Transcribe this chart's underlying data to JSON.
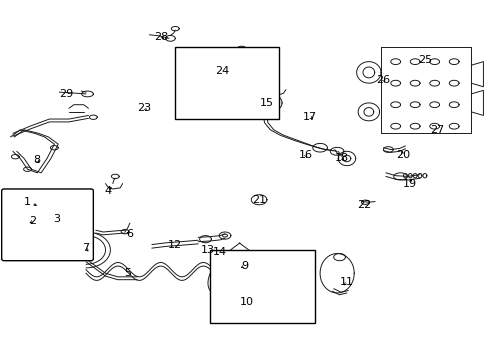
{
  "bg_color": "#ffffff",
  "fig_width": 4.89,
  "fig_height": 3.6,
  "dpi": 100,
  "labels": [
    {
      "num": "1",
      "ix": 0.055,
      "iy": 0.56
    },
    {
      "num": "2",
      "ix": 0.065,
      "iy": 0.615
    },
    {
      "num": "3",
      "ix": 0.115,
      "iy": 0.61
    },
    {
      "num": "4",
      "ix": 0.22,
      "iy": 0.53
    },
    {
      "num": "5",
      "ix": 0.26,
      "iy": 0.76
    },
    {
      "num": "6",
      "ix": 0.265,
      "iy": 0.65
    },
    {
      "num": "7",
      "ix": 0.175,
      "iy": 0.69
    },
    {
      "num": "8",
      "ix": 0.075,
      "iy": 0.445
    },
    {
      "num": "9",
      "ix": 0.5,
      "iy": 0.74
    },
    {
      "num": "10",
      "ix": 0.505,
      "iy": 0.84
    },
    {
      "num": "11",
      "ix": 0.71,
      "iy": 0.785
    },
    {
      "num": "12",
      "ix": 0.358,
      "iy": 0.68
    },
    {
      "num": "13",
      "ix": 0.425,
      "iy": 0.695
    },
    {
      "num": "14",
      "ix": 0.45,
      "iy": 0.7
    },
    {
      "num": "15",
      "ix": 0.545,
      "iy": 0.285
    },
    {
      "num": "16",
      "ix": 0.625,
      "iy": 0.43
    },
    {
      "num": "17",
      "ix": 0.635,
      "iy": 0.325
    },
    {
      "num": "18",
      "ix": 0.7,
      "iy": 0.44
    },
    {
      "num": "19",
      "ix": 0.84,
      "iy": 0.51
    },
    {
      "num": "20",
      "ix": 0.825,
      "iy": 0.43
    },
    {
      "num": "21",
      "ix": 0.53,
      "iy": 0.555
    },
    {
      "num": "22",
      "ix": 0.745,
      "iy": 0.57
    },
    {
      "num": "23",
      "ix": 0.295,
      "iy": 0.3
    },
    {
      "num": "24",
      "ix": 0.455,
      "iy": 0.195
    },
    {
      "num": "25",
      "ix": 0.87,
      "iy": 0.165
    },
    {
      "num": "26",
      "ix": 0.785,
      "iy": 0.22
    },
    {
      "num": "27",
      "ix": 0.895,
      "iy": 0.36
    },
    {
      "num": "28",
      "ix": 0.33,
      "iy": 0.1
    },
    {
      "num": "29",
      "ix": 0.135,
      "iy": 0.26
    }
  ],
  "box1": {
    "ix0": 0.007,
    "iy0": 0.53,
    "ix1": 0.185,
    "iy1": 0.72
  },
  "box2": {
    "ix0": 0.358,
    "iy0": 0.13,
    "ix1": 0.57,
    "iy1": 0.33
  },
  "box3": {
    "ix0": 0.43,
    "iy0": 0.695,
    "ix1": 0.645,
    "iy1": 0.9
  },
  "font_size": 8
}
